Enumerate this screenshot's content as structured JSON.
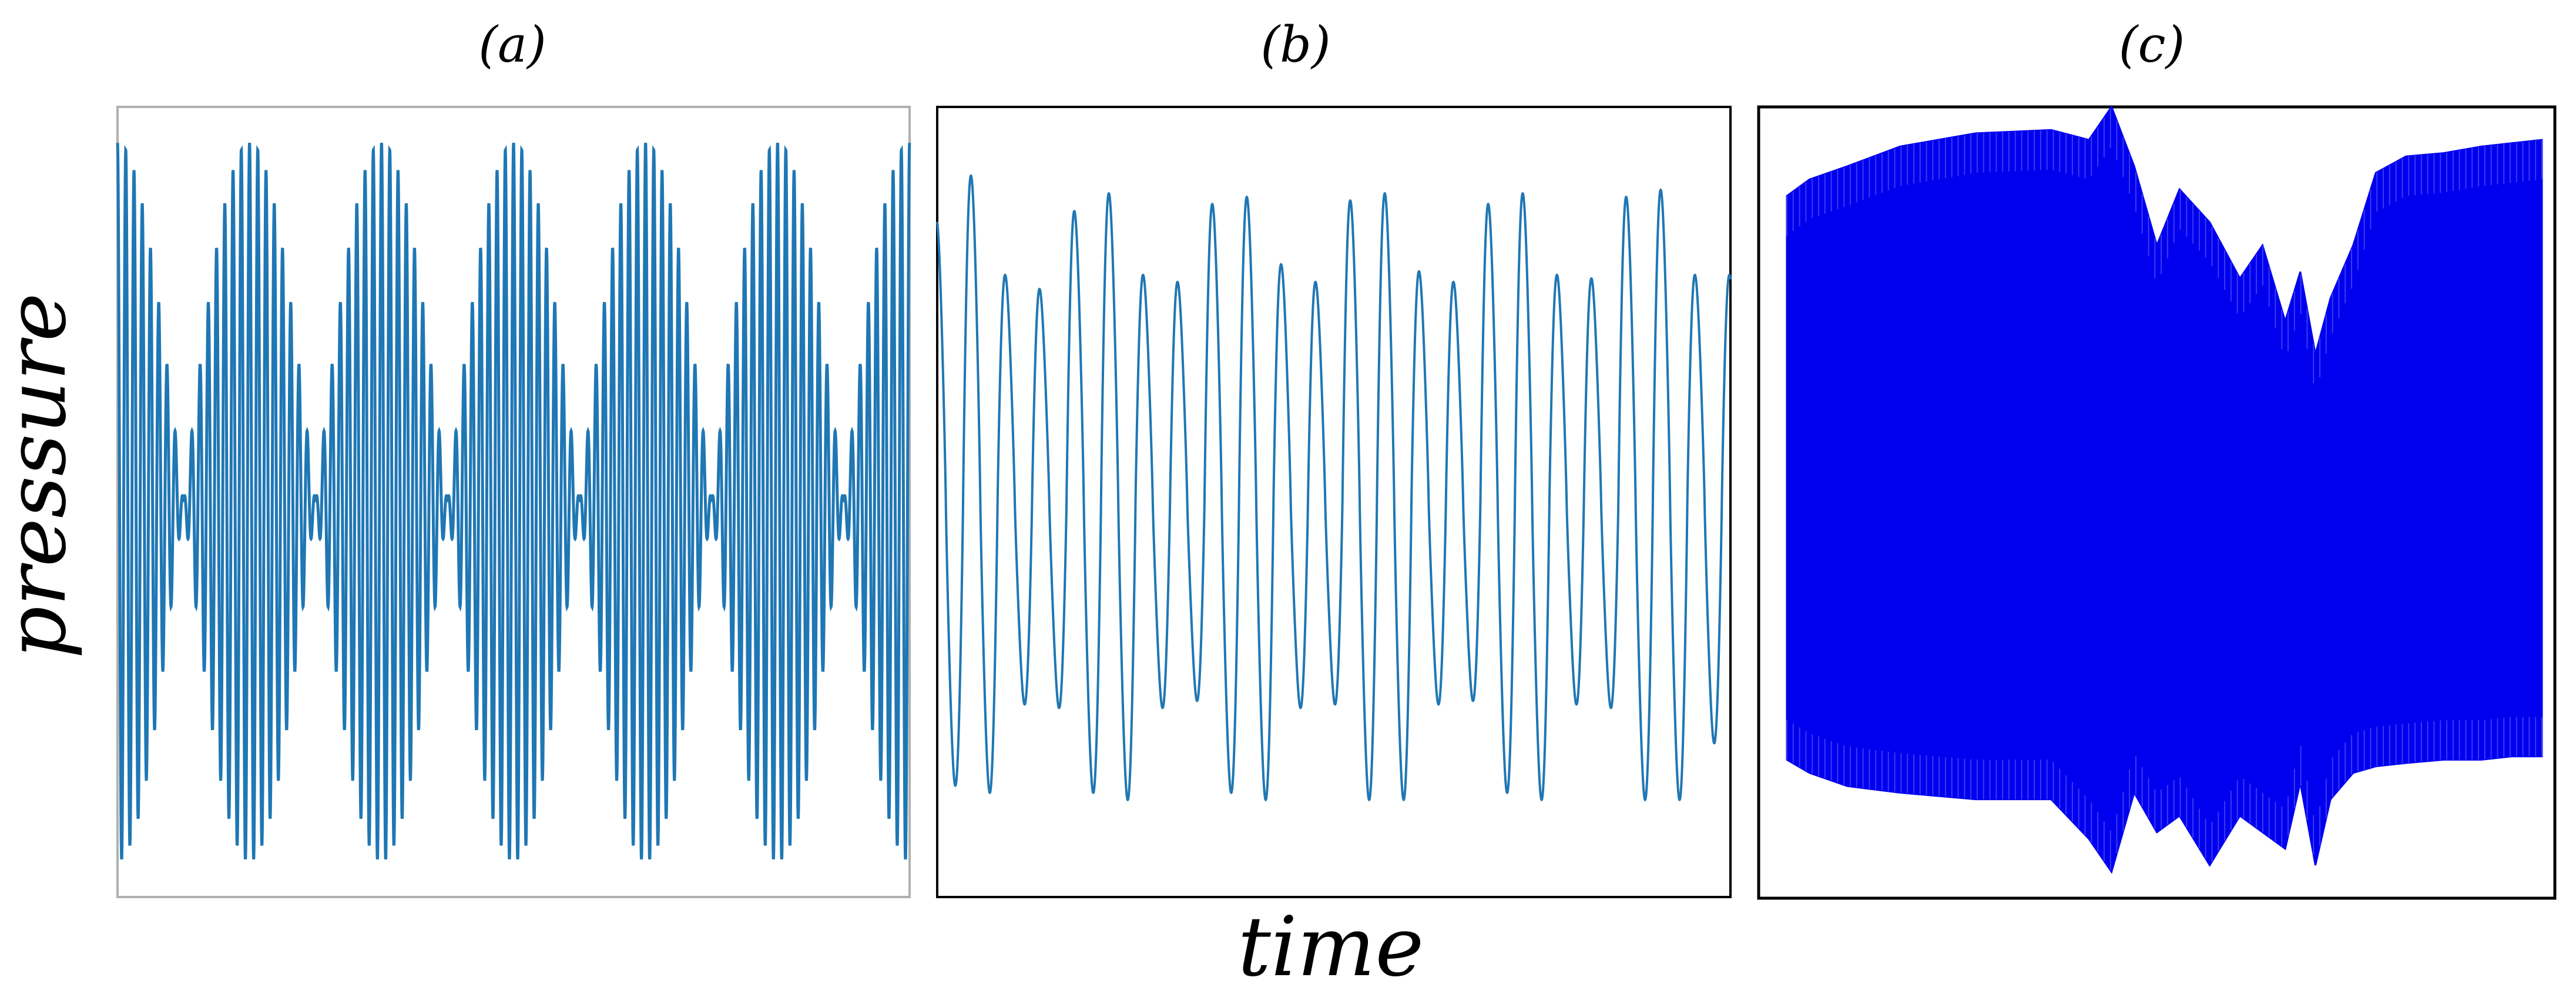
{
  "figure": {
    "ylabel": "pressure",
    "xlabel": "time"
  },
  "chart_data": [
    {
      "type": "line",
      "panel_label": "(a)",
      "xlabel": "",
      "ylabel": "",
      "xlim": [
        0,
        1
      ],
      "ylim": [
        -1.1,
        1.1
      ],
      "grid": false,
      "legend": "none",
      "description_of_signal": "beating oscillation",
      "series": [
        {
          "color": "#1f77b4",
          "carrier_cycles": 96,
          "envelope_beats": 6,
          "envelope_phase_start": "max",
          "amplitude_max": 1.0
        }
      ]
    },
    {
      "type": "line",
      "panel_label": "(b)",
      "xlabel": "",
      "ylabel": "",
      "xlim": [
        0,
        1
      ],
      "ylim": [
        -1.1,
        1.1
      ],
      "grid": false,
      "legend": "none",
      "series": [
        {
          "color": "#1f77b4",
          "peaks_upper": [
            0.78,
            0.9,
            0.62,
            0.58,
            0.8,
            0.85,
            0.62,
            0.6,
            0.82,
            0.84,
            0.65,
            0.6,
            0.83,
            0.85,
            0.63,
            0.6,
            0.82,
            0.85,
            0.62,
            0.61,
            0.84,
            0.86,
            0.62
          ],
          "peaks_lower": [
            -0.78,
            -0.8,
            -0.55,
            -0.56,
            -0.8,
            -0.82,
            -0.56,
            -0.54,
            -0.8,
            -0.82,
            -0.56,
            -0.55,
            -0.82,
            -0.82,
            -0.55,
            -0.54,
            -0.8,
            -0.82,
            -0.55,
            -0.56,
            -0.82,
            -0.82,
            -0.66
          ]
        }
      ]
    },
    {
      "type": "area",
      "panel_label": "(c)",
      "xlabel": "",
      "ylabel": "",
      "xlim": [
        0,
        1
      ],
      "ylim": [
        -1.2,
        1.2
      ],
      "grid": false,
      "legend": "none",
      "description_of_signal": "dense high-frequency oscillation, envelope shown",
      "series": [
        {
          "color": "#0000ee",
          "envelope_x": [
            0.0,
            0.03,
            0.08,
            0.15,
            0.25,
            0.35,
            0.4,
            0.43,
            0.46,
            0.49,
            0.52,
            0.56,
            0.6,
            0.63,
            0.66,
            0.68,
            0.7,
            0.72,
            0.75,
            0.78,
            0.82,
            0.87,
            0.92,
            0.96,
            1.0
          ],
          "upper": [
            0.93,
            0.98,
            1.02,
            1.08,
            1.12,
            1.13,
            1.1,
            1.2,
            1.02,
            0.78,
            0.95,
            0.85,
            0.68,
            0.78,
            0.55,
            0.7,
            0.45,
            0.62,
            0.78,
            1.0,
            1.05,
            1.06,
            1.08,
            1.09,
            1.1
          ],
          "lower": [
            -0.78,
            -0.82,
            -0.86,
            -0.88,
            -0.9,
            -0.9,
            -1.02,
            -1.12,
            -0.88,
            -1.0,
            -0.95,
            -1.1,
            -0.95,
            -1.0,
            -1.05,
            -0.85,
            -1.1,
            -0.9,
            -0.82,
            -0.8,
            -0.79,
            -0.78,
            -0.78,
            -0.77,
            -0.77
          ]
        }
      ]
    }
  ]
}
